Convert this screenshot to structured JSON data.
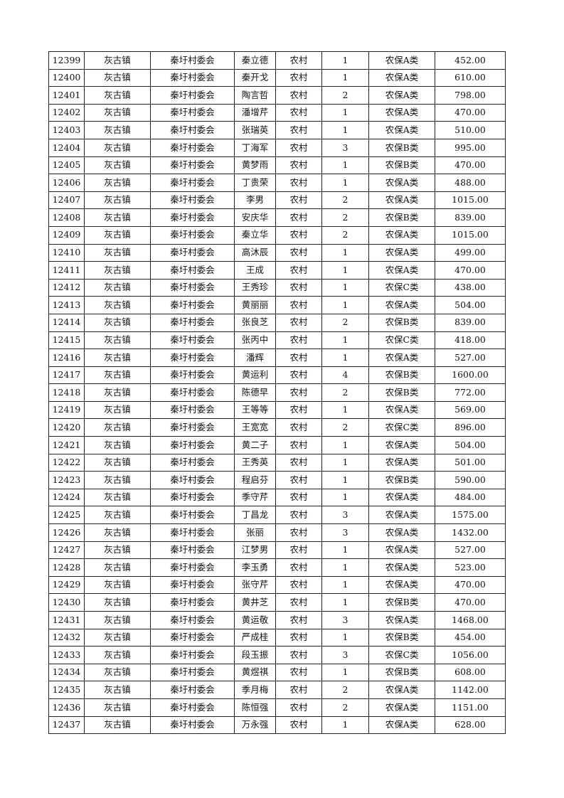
{
  "table": {
    "rows": [
      [
        "12399",
        "灰古镇",
        "秦圩村委会",
        "秦立德",
        "农村",
        "1",
        "农保A类",
        "452.00"
      ],
      [
        "12400",
        "灰古镇",
        "秦圩村委会",
        "秦开戈",
        "农村",
        "1",
        "农保A类",
        "610.00"
      ],
      [
        "12401",
        "灰古镇",
        "秦圩村委会",
        "陶言哲",
        "农村",
        "2",
        "农保A类",
        "798.00"
      ],
      [
        "12402",
        "灰古镇",
        "秦圩村委会",
        "潘增芹",
        "农村",
        "1",
        "农保A类",
        "470.00"
      ],
      [
        "12403",
        "灰古镇",
        "秦圩村委会",
        "张瑞英",
        "农村",
        "1",
        "农保A类",
        "510.00"
      ],
      [
        "12404",
        "灰古镇",
        "秦圩村委会",
        "丁海军",
        "农村",
        "3",
        "农保B类",
        "995.00"
      ],
      [
        "12405",
        "灰古镇",
        "秦圩村委会",
        "黄梦雨",
        "农村",
        "1",
        "农保B类",
        "470.00"
      ],
      [
        "12406",
        "灰古镇",
        "秦圩村委会",
        "丁贵荣",
        "农村",
        "1",
        "农保A类",
        "488.00"
      ],
      [
        "12407",
        "灰古镇",
        "秦圩村委会",
        "李男",
        "农村",
        "2",
        "农保A类",
        "1015.00"
      ],
      [
        "12408",
        "灰古镇",
        "秦圩村委会",
        "安庆华",
        "农村",
        "2",
        "农保B类",
        "839.00"
      ],
      [
        "12409",
        "灰古镇",
        "秦圩村委会",
        "秦立华",
        "农村",
        "2",
        "农保A类",
        "1015.00"
      ],
      [
        "12410",
        "灰古镇",
        "秦圩村委会",
        "高沐辰",
        "农村",
        "1",
        "农保A类",
        "499.00"
      ],
      [
        "12411",
        "灰古镇",
        "秦圩村委会",
        "王成",
        "农村",
        "1",
        "农保A类",
        "470.00"
      ],
      [
        "12412",
        "灰古镇",
        "秦圩村委会",
        "王秀珍",
        "农村",
        "1",
        "农保C类",
        "438.00"
      ],
      [
        "12413",
        "灰古镇",
        "秦圩村委会",
        "黄丽丽",
        "农村",
        "1",
        "农保A类",
        "504.00"
      ],
      [
        "12414",
        "灰古镇",
        "秦圩村委会",
        "张良芝",
        "农村",
        "2",
        "农保B类",
        "839.00"
      ],
      [
        "12415",
        "灰古镇",
        "秦圩村委会",
        "张丙中",
        "农村",
        "1",
        "农保C类",
        "418.00"
      ],
      [
        "12416",
        "灰古镇",
        "秦圩村委会",
        "潘辉",
        "农村",
        "1",
        "农保A类",
        "527.00"
      ],
      [
        "12417",
        "灰古镇",
        "秦圩村委会",
        "黄运利",
        "农村",
        "4",
        "农保B类",
        "1600.00"
      ],
      [
        "12418",
        "灰古镇",
        "秦圩村委会",
        "陈德早",
        "农村",
        "2",
        "农保B类",
        "772.00"
      ],
      [
        "12419",
        "灰古镇",
        "秦圩村委会",
        "王等等",
        "农村",
        "1",
        "农保A类",
        "569.00"
      ],
      [
        "12420",
        "灰古镇",
        "秦圩村委会",
        "王宽宽",
        "农村",
        "2",
        "农保C类",
        "896.00"
      ],
      [
        "12421",
        "灰古镇",
        "秦圩村委会",
        "黄二子",
        "农村",
        "1",
        "农保A类",
        "504.00"
      ],
      [
        "12422",
        "灰古镇",
        "秦圩村委会",
        "王秀英",
        "农村",
        "1",
        "农保A类",
        "501.00"
      ],
      [
        "12423",
        "灰古镇",
        "秦圩村委会",
        "程启芬",
        "农村",
        "1",
        "农保B类",
        "590.00"
      ],
      [
        "12424",
        "灰古镇",
        "秦圩村委会",
        "季守芹",
        "农村",
        "1",
        "农保A类",
        "484.00"
      ],
      [
        "12425",
        "灰古镇",
        "秦圩村委会",
        "丁昌龙",
        "农村",
        "3",
        "农保A类",
        "1575.00"
      ],
      [
        "12426",
        "灰古镇",
        "秦圩村委会",
        "张丽",
        "农村",
        "3",
        "农保A类",
        "1432.00"
      ],
      [
        "12427",
        "灰古镇",
        "秦圩村委会",
        "江梦男",
        "农村",
        "1",
        "农保A类",
        "527.00"
      ],
      [
        "12428",
        "灰古镇",
        "秦圩村委会",
        "李玉勇",
        "农村",
        "1",
        "农保A类",
        "523.00"
      ],
      [
        "12429",
        "灰古镇",
        "秦圩村委会",
        "张守芹",
        "农村",
        "1",
        "农保A类",
        "470.00"
      ],
      [
        "12430",
        "灰古镇",
        "秦圩村委会",
        "黄井芝",
        "农村",
        "1",
        "农保B类",
        "470.00"
      ],
      [
        "12431",
        "灰古镇",
        "秦圩村委会",
        "黄运敬",
        "农村",
        "3",
        "农保A类",
        "1468.00"
      ],
      [
        "12432",
        "灰古镇",
        "秦圩村委会",
        "严成桂",
        "农村",
        "1",
        "农保B类",
        "454.00"
      ],
      [
        "12433",
        "灰古镇",
        "秦圩村委会",
        "段玉振",
        "农村",
        "3",
        "农保C类",
        "1056.00"
      ],
      [
        "12434",
        "灰古镇",
        "秦圩村委会",
        "黄煜祺",
        "农村",
        "1",
        "农保B类",
        "608.00"
      ],
      [
        "12435",
        "灰古镇",
        "秦圩村委会",
        "季月梅",
        "农村",
        "2",
        "农保A类",
        "1142.00"
      ],
      [
        "12436",
        "灰古镇",
        "秦圩村委会",
        "陈恒强",
        "农村",
        "2",
        "农保A类",
        "1151.00"
      ],
      [
        "12437",
        "灰古镇",
        "秦圩村委会",
        "万永强",
        "农村",
        "1",
        "农保A类",
        "628.00"
      ]
    ]
  }
}
